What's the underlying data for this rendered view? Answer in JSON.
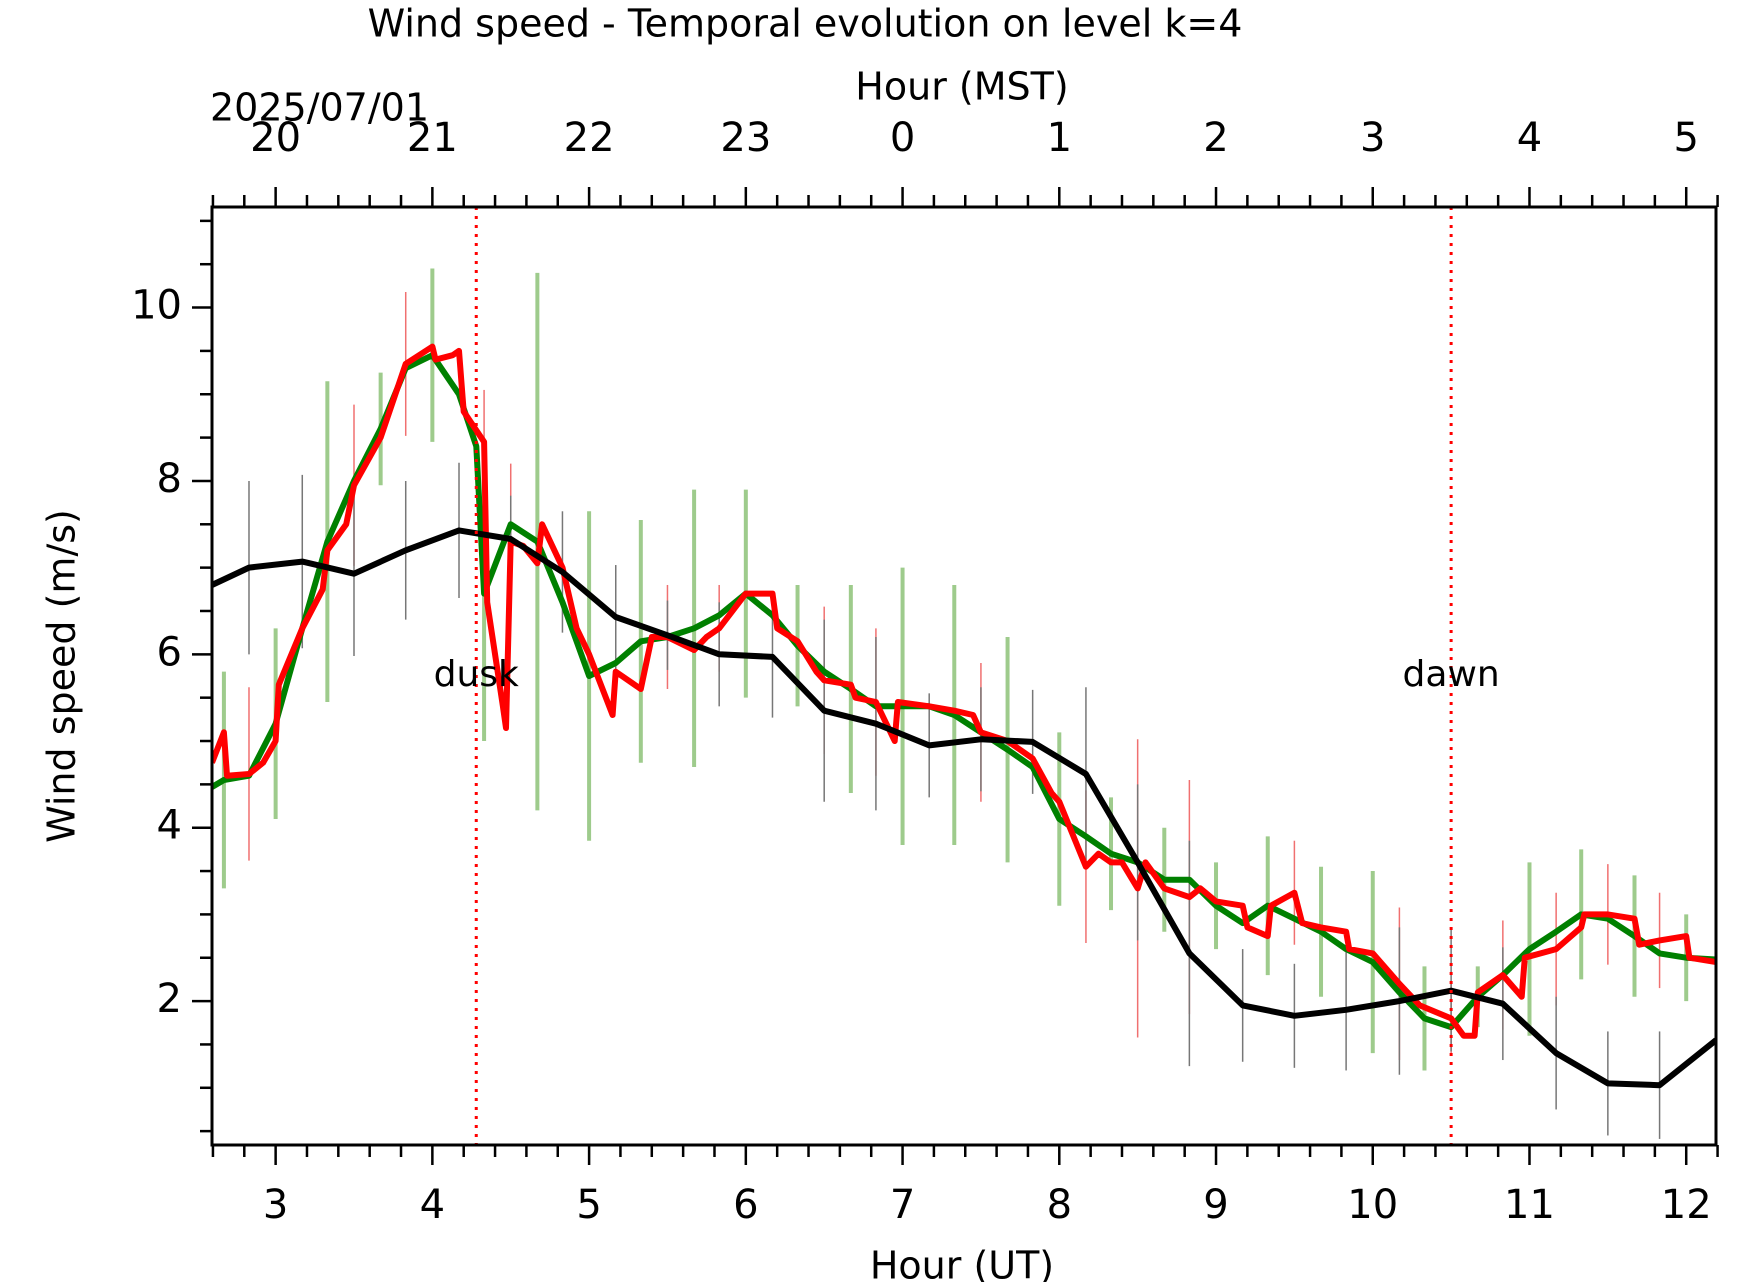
{
  "chart_data": {
    "type": "line",
    "title": "Wind speed - Temporal evolution on level k=4",
    "xlabel": "Hour (UT)",
    "ylabel": "Wind speed (m/s)",
    "x2label": "Hour (MST)",
    "date_label": "2025/07/01",
    "xlim": [
      2.594,
      12.19
    ],
    "ylim": [
      0.34,
      11.16
    ],
    "xticks": [
      3,
      4,
      5,
      6,
      7,
      8,
      9,
      10,
      11,
      12
    ],
    "x2ticks": [
      {
        "value": 3,
        "label": "20"
      },
      {
        "value": 4,
        "label": "21"
      },
      {
        "value": 5,
        "label": "22"
      },
      {
        "value": 6,
        "label": "23"
      },
      {
        "value": 7,
        "label": "0"
      },
      {
        "value": 8,
        "label": "1"
      },
      {
        "value": 9,
        "label": "2"
      },
      {
        "value": 10,
        "label": "3"
      },
      {
        "value": 11,
        "label": "4"
      },
      {
        "value": 12,
        "label": "5"
      }
    ],
    "xminorticks": [
      2.6,
      2.8,
      3.2,
      3.4,
      3.6,
      3.8,
      4.2,
      4.4,
      4.6,
      4.8,
      5.2,
      5.4,
      5.6,
      5.8,
      6.2,
      6.4,
      6.6,
      6.8,
      7.2,
      7.4,
      7.6,
      7.8,
      8.2,
      8.4,
      8.6,
      8.8,
      9.2,
      9.4,
      9.6,
      9.8,
      10.2,
      10.4,
      10.6,
      10.8,
      11.2,
      11.4,
      11.6,
      11.8,
      12.2
    ],
    "yticks": [
      2,
      4,
      6,
      8,
      10
    ],
    "yminorticks": [
      0.5,
      1,
      1.5,
      2.5,
      3,
      3.5,
      4.5,
      5,
      5.5,
      6.5,
      7,
      7.5,
      8.5,
      9,
      9.5,
      10.5,
      11
    ],
    "annotations": [
      {
        "text": "dusk",
        "x": 4.28,
        "y": 5.75,
        "color": "#ff0000"
      },
      {
        "text": "dawn",
        "x": 10.5,
        "y": 5.75,
        "color": "#ff0000"
      }
    ],
    "series": [
      {
        "color": "#008000",
        "error_color": "#9ecb8c",
        "error_width": 4,
        "x": [
          2.594,
          2.67,
          2.83,
          3.0,
          3.17,
          3.33,
          3.5,
          3.67,
          3.83,
          4.0,
          4.17,
          4.28,
          4.33,
          4.5,
          4.67,
          4.83,
          5.0,
          5.17,
          5.33,
          5.5,
          5.67,
          5.83,
          6.0,
          6.17,
          6.33,
          6.5,
          6.67,
          6.83,
          7.0,
          7.17,
          7.33,
          7.5,
          7.67,
          7.83,
          8.0,
          8.17,
          8.33,
          8.5,
          8.67,
          8.83,
          9.0,
          9.17,
          9.33,
          9.5,
          9.67,
          9.83,
          10.0,
          10.17,
          10.33,
          10.5,
          10.67,
          10.83,
          11.0,
          11.17,
          11.33,
          11.5,
          11.67,
          11.83,
          12.0,
          12.19
        ],
        "values": [
          4.47,
          4.55,
          4.6,
          5.2,
          6.3,
          7.3,
          8.0,
          8.6,
          9.3,
          9.45,
          9.0,
          8.4,
          6.7,
          7.5,
          7.3,
          6.6,
          5.75,
          5.9,
          6.15,
          6.2,
          6.3,
          6.45,
          6.7,
          6.45,
          6.1,
          5.8,
          5.6,
          5.4,
          5.4,
          5.4,
          5.3,
          5.1,
          4.9,
          4.7,
          4.1,
          3.9,
          3.7,
          3.6,
          3.4,
          3.4,
          3.1,
          2.9,
          3.1,
          2.95,
          2.8,
          2.6,
          2.45,
          2.1,
          1.8,
          1.7,
          2.05,
          2.3,
          2.6,
          2.8,
          3.0,
          2.95,
          2.75,
          2.55,
          2.5,
          2.48
        ],
        "errors": [
          null,
          1.25,
          null,
          1.1,
          null,
          1.85,
          null,
          0.65,
          null,
          1.0,
          null,
          null,
          1.7,
          null,
          3.1,
          null,
          1.9,
          null,
          1.4,
          null,
          1.6,
          null,
          1.2,
          null,
          0.7,
          null,
          1.2,
          null,
          1.6,
          null,
          1.5,
          null,
          1.3,
          null,
          1.0,
          null,
          0.65,
          null,
          0.6,
          null,
          0.5,
          null,
          0.8,
          null,
          0.75,
          null,
          1.05,
          null,
          0.6,
          null,
          0.35,
          null,
          1.0,
          null,
          0.75,
          null,
          0.7,
          null,
          0.5,
          null
        ]
      },
      {
        "color": "#ff0000",
        "error_color": "#f07070",
        "error_width": 1.5,
        "x": [
          2.594,
          2.67,
          2.69,
          2.83,
          2.92,
          3.0,
          3.02,
          3.17,
          3.3,
          3.33,
          3.45,
          3.5,
          3.67,
          3.83,
          4.0,
          4.02,
          4.13,
          4.17,
          4.2,
          4.33,
          4.35,
          4.45,
          4.47,
          4.5,
          4.58,
          4.67,
          4.7,
          4.83,
          4.92,
          5.0,
          5.15,
          5.17,
          5.33,
          5.4,
          5.5,
          5.67,
          5.75,
          5.83,
          6.0,
          6.17,
          6.2,
          6.33,
          6.45,
          6.5,
          6.67,
          6.7,
          6.83,
          6.95,
          6.97,
          7.17,
          7.33,
          7.45,
          7.5,
          7.67,
          7.83,
          7.95,
          8.0,
          8.17,
          8.25,
          8.33,
          8.4,
          8.5,
          8.55,
          8.67,
          8.83,
          8.9,
          9.0,
          9.17,
          9.2,
          9.33,
          9.35,
          9.5,
          9.55,
          9.67,
          9.83,
          9.85,
          10.0,
          10.17,
          10.3,
          10.5,
          10.58,
          10.65,
          10.67,
          10.83,
          10.95,
          10.97,
          11.17,
          11.33,
          11.35,
          11.5,
          11.67,
          11.7,
          11.83,
          12.0,
          12.02,
          12.19
        ],
        "values": [
          4.75,
          5.1,
          4.6,
          4.62,
          4.75,
          5.0,
          5.65,
          6.3,
          6.75,
          7.2,
          7.5,
          7.95,
          8.5,
          9.35,
          9.55,
          9.4,
          9.45,
          9.5,
          8.8,
          8.45,
          6.6,
          5.4,
          5.15,
          7.3,
          7.25,
          7.05,
          7.5,
          7.0,
          6.3,
          6.0,
          5.3,
          5.8,
          5.6,
          6.2,
          6.2,
          6.05,
          6.2,
          6.3,
          6.7,
          6.7,
          6.3,
          6.15,
          5.8,
          5.7,
          5.65,
          5.5,
          5.45,
          5.0,
          5.45,
          5.4,
          5.35,
          5.3,
          5.1,
          5.0,
          4.8,
          4.4,
          4.3,
          3.55,
          3.7,
          3.6,
          3.6,
          3.3,
          3.6,
          3.3,
          3.2,
          3.3,
          3.15,
          3.1,
          2.85,
          2.75,
          3.1,
          3.25,
          2.9,
          2.85,
          2.8,
          2.6,
          2.55,
          2.2,
          1.95,
          1.8,
          1.6,
          1.6,
          2.1,
          2.3,
          2.05,
          2.5,
          2.6,
          2.85,
          3.0,
          3.0,
          2.95,
          2.65,
          2.7,
          2.75,
          2.5,
          2.45
        ],
        "errors": [
          null,
          null,
          null,
          1.0,
          null,
          null,
          null,
          null,
          null,
          null,
          null,
          0.93,
          null,
          0.83,
          null,
          null,
          null,
          null,
          null,
          0.6,
          null,
          null,
          null,
          0.9,
          null,
          null,
          null,
          null,
          null,
          null,
          null,
          null,
          null,
          null,
          0.6,
          null,
          null,
          0.5,
          null,
          null,
          null,
          null,
          null,
          0.85,
          null,
          null,
          0.85,
          null,
          null,
          null,
          null,
          null,
          0.8,
          null,
          null,
          null,
          null,
          0.88,
          null,
          null,
          null,
          1.72,
          null,
          null,
          1.35,
          null,
          null,
          null,
          null,
          null,
          null,
          0.6,
          null,
          null,
          null,
          null,
          null,
          0.88,
          null,
          0.4,
          null,
          null,
          null,
          0.63,
          null,
          null,
          0.65,
          null,
          null,
          0.58,
          null,
          null,
          0.55,
          null,
          null,
          0.83
        ]
      },
      {
        "color": "#000000",
        "error_color": "#777777",
        "error_width": 1.5,
        "x": [
          2.594,
          2.83,
          3.17,
          3.5,
          3.83,
          4.17,
          4.5,
          4.83,
          5.17,
          5.5,
          5.83,
          6.17,
          6.5,
          6.83,
          7.17,
          7.5,
          7.83,
          8.17,
          8.5,
          8.83,
          9.17,
          9.5,
          9.83,
          10.17,
          10.5,
          10.83,
          11.17,
          11.5,
          11.83,
          12.19
        ],
        "values": [
          6.8,
          7.0,
          7.07,
          6.93,
          7.2,
          7.43,
          7.33,
          6.95,
          6.43,
          6.22,
          6.0,
          5.97,
          5.35,
          5.2,
          4.95,
          5.02,
          4.99,
          4.62,
          3.6,
          2.55,
          1.95,
          1.83,
          1.9,
          2.0,
          2.12,
          1.97,
          1.4,
          1.05,
          1.03,
          1.55
        ],
        "errors": [
          null,
          1.0,
          1.0,
          0.95,
          0.8,
          0.78,
          0.5,
          0.7,
          0.6,
          0.4,
          0.6,
          0.7,
          1.05,
          1.0,
          0.6,
          0.6,
          0.6,
          1.0,
          0.9,
          1.3,
          0.65,
          0.6,
          0.7,
          0.85,
          0.7,
          0.65,
          0.65,
          0.6,
          0.62,
          0.8
        ]
      }
    ]
  }
}
